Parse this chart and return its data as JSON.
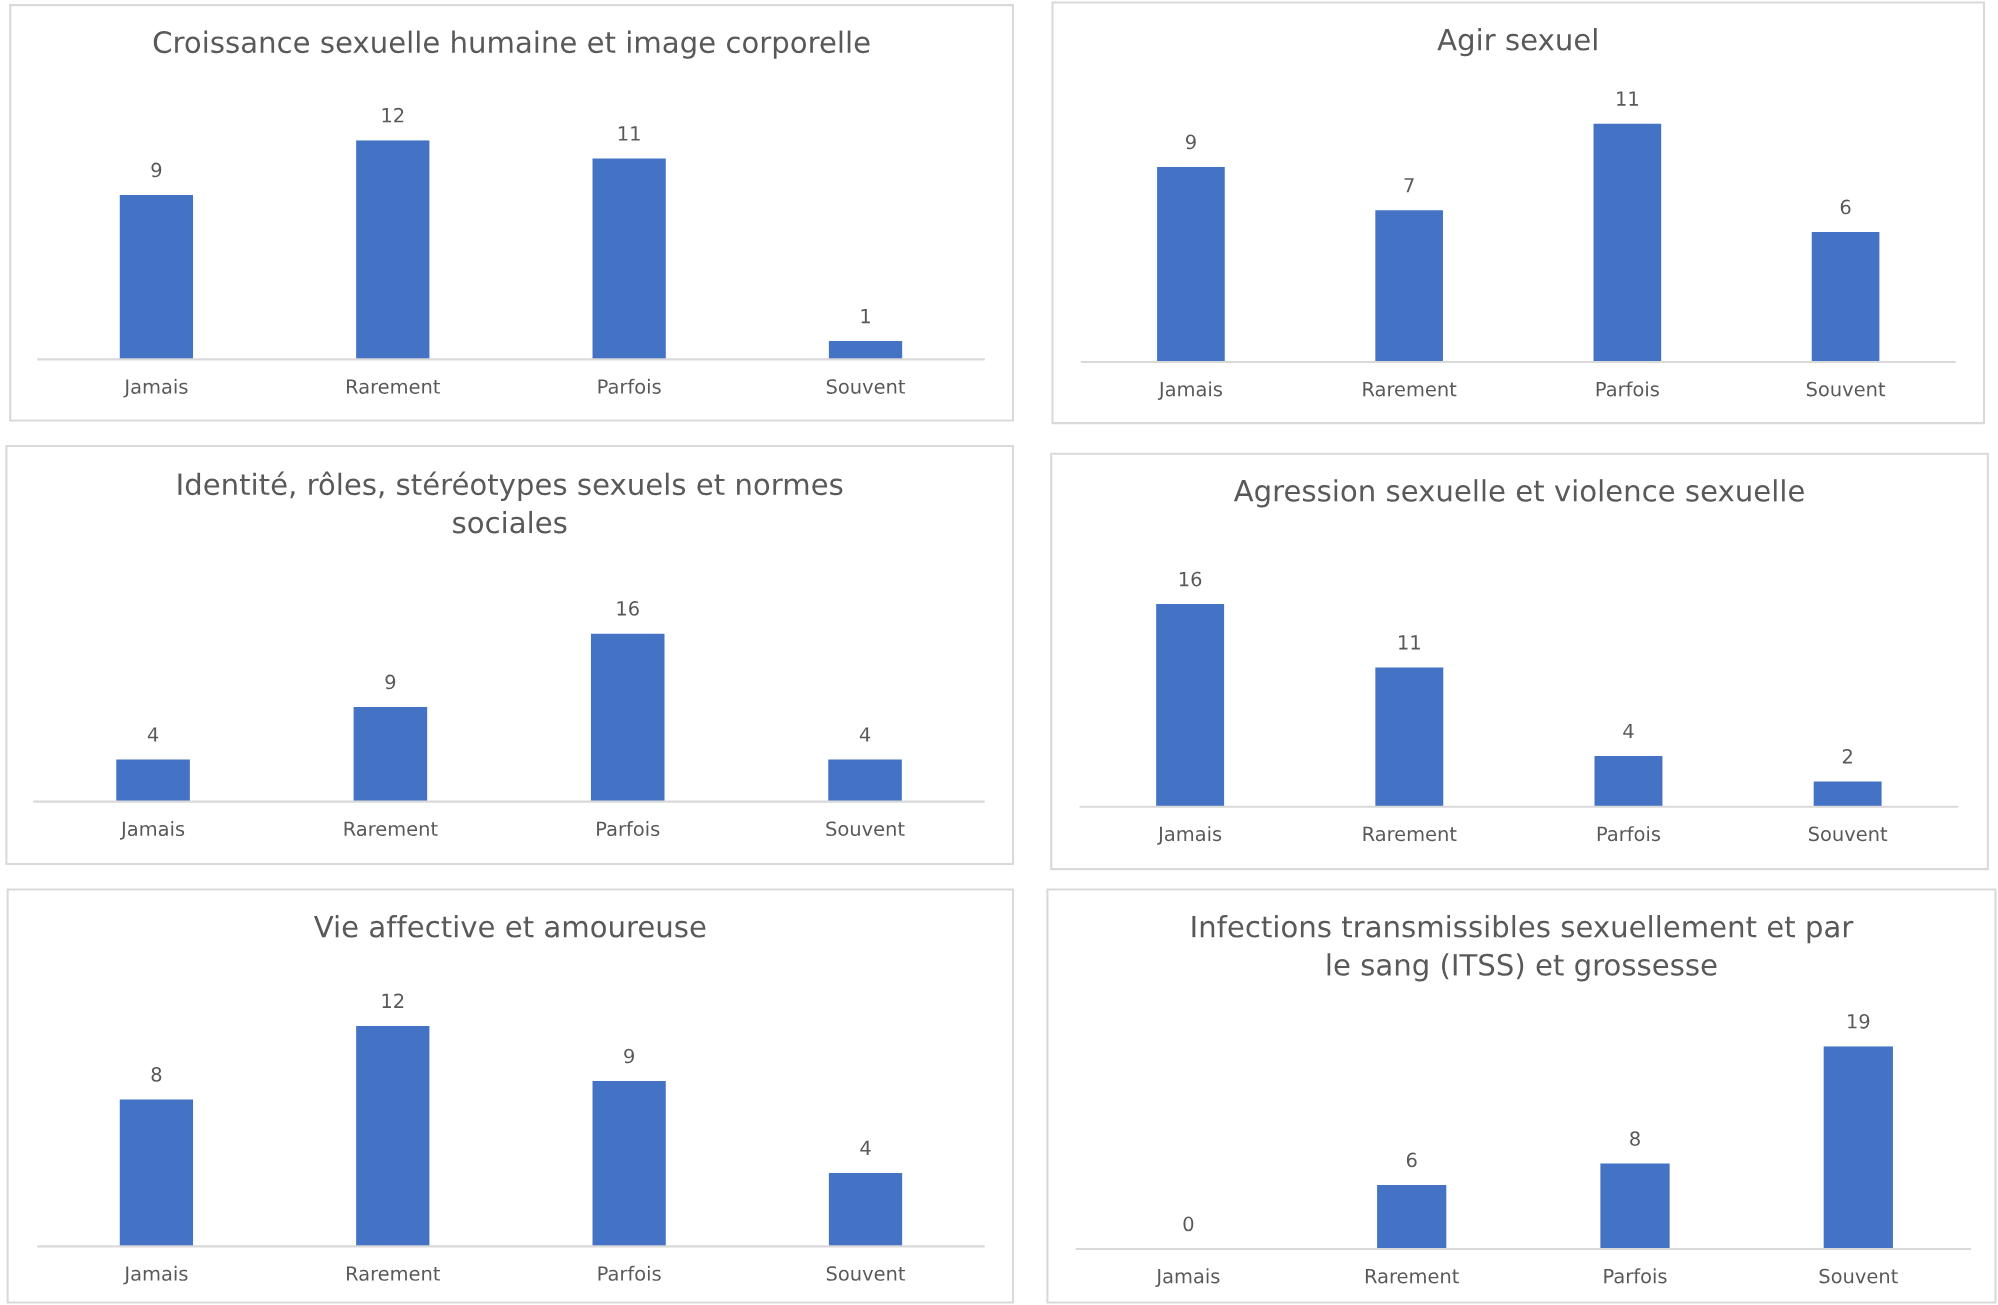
{
  "chart_data": [
    {
      "type": "bar",
      "title": "Croissance sexuelle humaine et image corporelle",
      "categories": [
        "Jamais",
        "Rarement",
        "Parfois",
        "Souvent"
      ],
      "values": [
        9,
        12,
        11,
        1
      ],
      "color": "#4472c4",
      "data_labels": true,
      "grid": false,
      "legend": false
    },
    {
      "type": "bar",
      "title": "Agir sexuel",
      "categories": [
        "Jamais",
        "Rarement",
        "Parfois",
        "Souvent"
      ],
      "values": [
        9,
        7,
        11,
        6
      ],
      "color": "#4472c4",
      "data_labels": true,
      "grid": false,
      "legend": false
    },
    {
      "type": "bar",
      "title": "Identité, rôles, stéréotypes sexuels et normes sociales",
      "categories": [
        "Jamais",
        "Rarement",
        "Parfois",
        "Souvent"
      ],
      "values": [
        4,
        9,
        16,
        4
      ],
      "color": "#4472c4",
      "data_labels": true,
      "grid": false,
      "legend": false
    },
    {
      "type": "bar",
      "title": "Agression sexuelle et violence sexuelle",
      "categories": [
        "Jamais",
        "Rarement",
        "Parfois",
        "Souvent"
      ],
      "values": [
        16,
        11,
        4,
        2
      ],
      "color": "#4472c4",
      "data_labels": true,
      "grid": false,
      "legend": false
    },
    {
      "type": "bar",
      "title": "Vie affective et amoureuse",
      "categories": [
        "Jamais",
        "Rarement",
        "Parfois",
        "Souvent"
      ],
      "values": [
        8,
        12,
        9,
        4
      ],
      "color": "#4472c4",
      "data_labels": true,
      "grid": false,
      "legend": false
    },
    {
      "type": "bar",
      "title": "Infections transmissibles sexuellement et par le sang (ITSS) et grossesse",
      "categories": [
        "Jamais",
        "Rarement",
        "Parfois",
        "Souvent"
      ],
      "values": [
        0,
        6,
        8,
        19
      ],
      "color": "#4472c4",
      "data_labels": true,
      "grid": false,
      "legend": false
    }
  ]
}
